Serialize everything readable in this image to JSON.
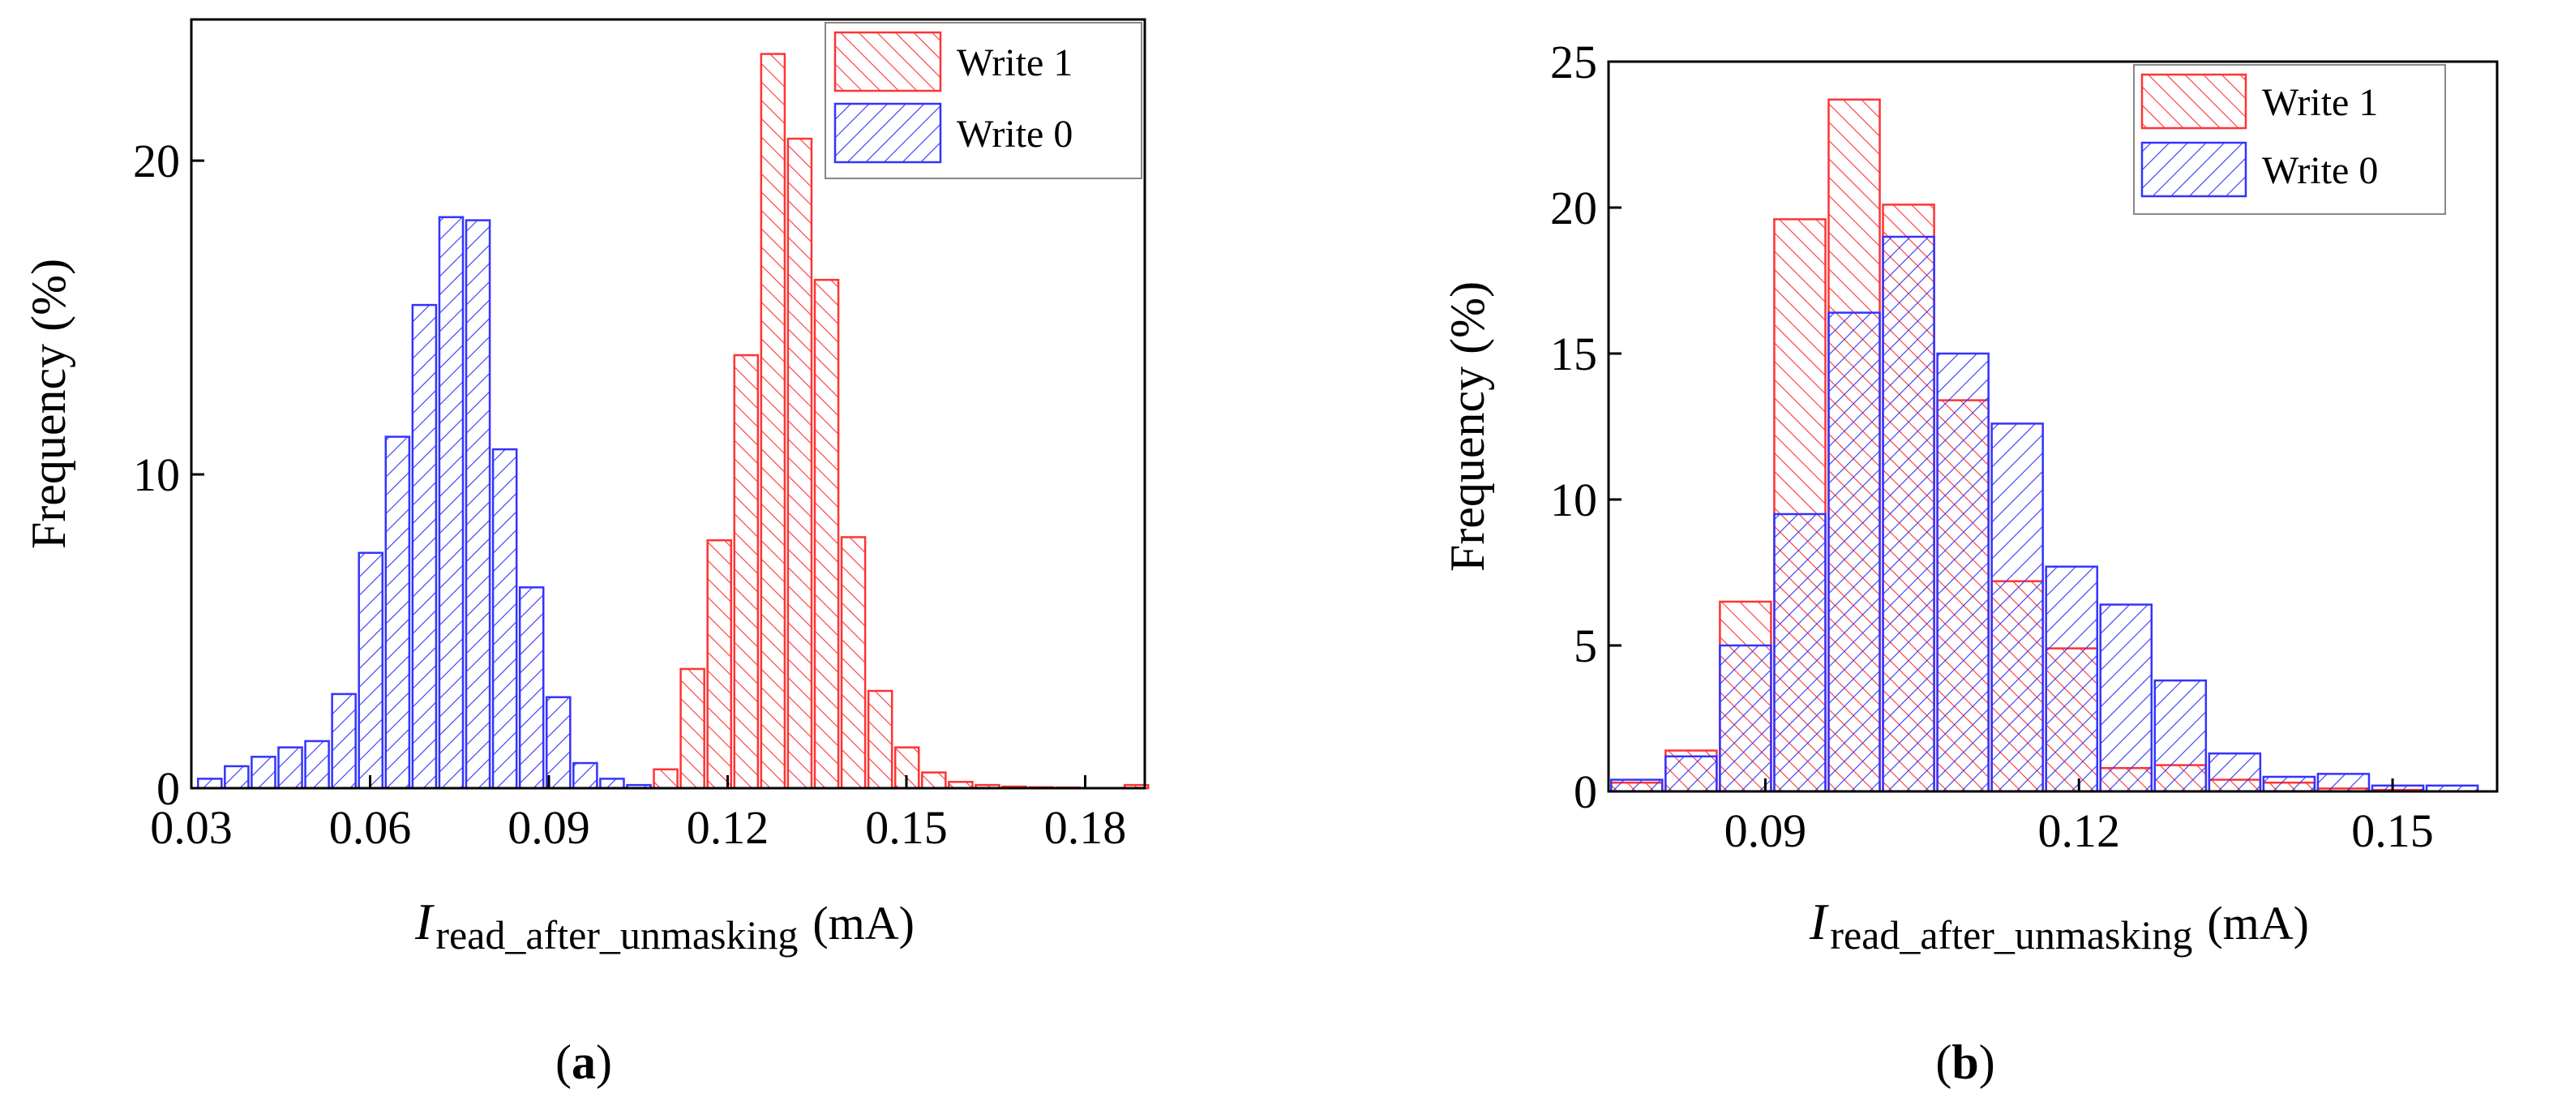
{
  "colors": {
    "write1": "#ff3333",
    "write0": "#3333ff"
  },
  "chart_data": [
    {
      "id": "a",
      "type": "bar",
      "caption": "a",
      "xlabel": {
        "main": "I",
        "sub": "read_after_unmasking",
        "unit": "(mA)"
      },
      "ylabel": "Frequency (%)",
      "xlim": [
        0.03,
        0.19
      ],
      "ylim": [
        0,
        24.5
      ],
      "bin_width": 0.0045,
      "xticks": [
        0.03,
        0.06,
        0.09,
        0.12,
        0.15,
        0.18
      ],
      "xtick_labels": [
        "0.03",
        "0.06",
        "0.09",
        "0.12",
        "0.15",
        "0.18"
      ],
      "yticks": [
        0,
        10,
        20
      ],
      "ytick_labels": [
        "0",
        "10",
        "20"
      ],
      "legend": [
        "Write 1",
        "Write 0"
      ],
      "series": [
        {
          "name": "Write 1",
          "color_key": "write1",
          "x": [
            0.1096,
            0.1141,
            0.1186,
            0.1231,
            0.1276,
            0.1321,
            0.1366,
            0.1411,
            0.1456,
            0.1501,
            0.1546,
            0.1591,
            0.1636,
            0.1681,
            0.1726,
            0.1771,
            0.1886
          ],
          "values": [
            0.6,
            3.8,
            7.9,
            13.8,
            23.4,
            20.7,
            16.2,
            8.0,
            3.1,
            1.3,
            0.5,
            0.2,
            0.1,
            0.05,
            0.03,
            0.02,
            0.1
          ]
        },
        {
          "name": "Write 0",
          "color_key": "write0",
          "x": [
            0.0331,
            0.0376,
            0.0421,
            0.0466,
            0.0511,
            0.0556,
            0.0601,
            0.0646,
            0.0691,
            0.0736,
            0.0781,
            0.0826,
            0.0871,
            0.0916,
            0.0961,
            0.1006,
            0.1051
          ],
          "values": [
            0.3,
            0.7,
            1.0,
            1.3,
            1.5,
            3.0,
            7.5,
            11.2,
            15.4,
            18.2,
            18.1,
            10.8,
            6.4,
            2.9,
            0.8,
            0.3,
            0.1
          ]
        }
      ]
    },
    {
      "id": "b",
      "type": "bar",
      "caption": "b",
      "xlabel": {
        "main": "I",
        "sub": "read_after_unmasking",
        "unit": "(mA)"
      },
      "ylabel": "Frequency (%)",
      "xlim": [
        0.075,
        0.16
      ],
      "ylim": [
        0,
        25
      ],
      "bin_width": 0.0052,
      "xticks": [
        0.09,
        0.12,
        0.15
      ],
      "xtick_labels": [
        "0.09",
        "0.12",
        "0.15"
      ],
      "yticks": [
        0,
        5,
        10,
        15,
        20,
        25
      ],
      "ytick_labels": [
        "0",
        "5",
        "10",
        "15",
        "20",
        "25"
      ],
      "legend": [
        "Write 1",
        "Write 0"
      ],
      "series": [
        {
          "name": "Write 1",
          "color_key": "write1",
          "x": [
            0.0777,
            0.0829,
            0.0881,
            0.0933,
            0.0985,
            0.1037,
            0.1089,
            0.1141,
            0.1193,
            0.1245,
            0.1297,
            0.1349,
            0.1401,
            0.1453,
            0.1505
          ],
          "values": [
            0.3,
            1.4,
            6.5,
            19.6,
            23.7,
            20.1,
            13.4,
            7.2,
            4.9,
            0.8,
            0.9,
            0.4,
            0.3,
            0.1,
            0.05
          ]
        },
        {
          "name": "Write 0",
          "color_key": "write0",
          "x": [
            0.0777,
            0.0829,
            0.0881,
            0.0933,
            0.0985,
            0.1037,
            0.1089,
            0.1141,
            0.1193,
            0.1245,
            0.1297,
            0.1349,
            0.1401,
            0.1453,
            0.1505,
            0.1557
          ],
          "values": [
            0.4,
            1.2,
            5.0,
            9.5,
            16.4,
            19.0,
            15.0,
            12.6,
            7.7,
            6.4,
            3.8,
            1.3,
            0.5,
            0.6,
            0.2,
            0.2
          ]
        }
      ]
    }
  ]
}
